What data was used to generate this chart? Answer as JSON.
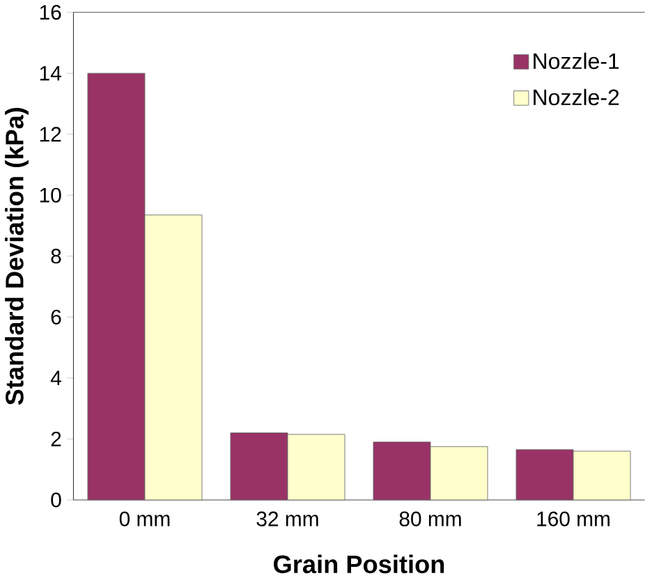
{
  "chart_data": {
    "type": "bar",
    "xlabel": "Grain Position",
    "ylabel": "Standard Deviation (kPa)",
    "categories": [
      "0 mm",
      "32 mm",
      "80 mm",
      "160 mm"
    ],
    "series": [
      {
        "name": "Nozzle-1",
        "color": "#993366",
        "values": [
          14,
          2.2,
          1.9,
          1.65
        ]
      },
      {
        "name": "Nozzle-2",
        "color": "#ffffcc",
        "values": [
          9.35,
          2.15,
          1.75,
          1.6
        ]
      }
    ],
    "ylim": [
      0,
      16
    ],
    "yticks": [
      0,
      2,
      4,
      6,
      8,
      10,
      12,
      14,
      16
    ],
    "legend": "top right",
    "grid": false
  }
}
